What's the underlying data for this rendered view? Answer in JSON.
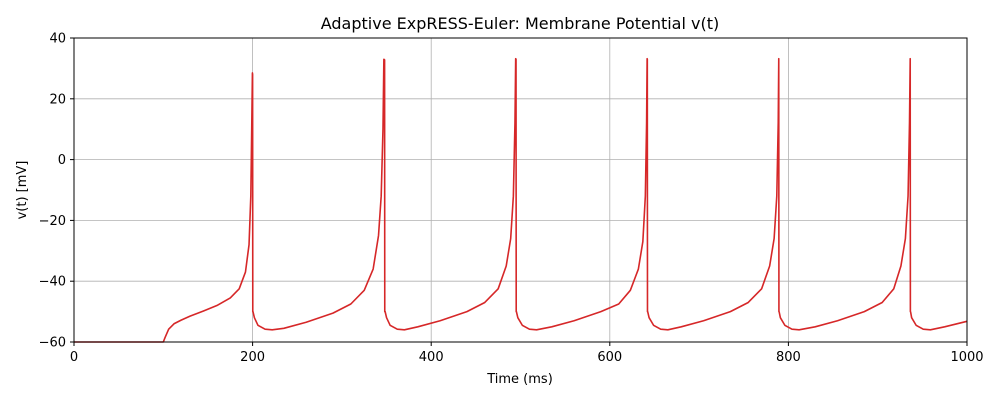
{
  "chart_data": {
    "type": "line",
    "title": "Adaptive ExpRESS-Euler: Membrane Potential v(t)",
    "xlabel": "Time (ms)",
    "ylabel": "v(t) [mV]",
    "xlim": [
      0,
      1000
    ],
    "ylim": [
      -60,
      40
    ],
    "xticks": [
      0,
      200,
      400,
      600,
      800,
      1000
    ],
    "yticks": [
      -60,
      -40,
      -20,
      0,
      20,
      40
    ],
    "ytick_labels": [
      "−60",
      "−40",
      "−20",
      "0",
      "20",
      "40"
    ],
    "grid": true,
    "legend": "none",
    "series": [
      {
        "color": "#d62728",
        "x": [
          0,
          100,
          102,
          106,
          112,
          120,
          130,
          145,
          160,
          175,
          185,
          192,
          196,
          198,
          199,
          199.8,
          200,
          200.2,
          200.4,
          202,
          206,
          214,
          222,
          235,
          260,
          290,
          310,
          325,
          335,
          341,
          344,
          346,
          347,
          347.8,
          348,
          348.2,
          348.4,
          350,
          354,
          362,
          370,
          385,
          410,
          440,
          460,
          475,
          484,
          489,
          492,
          493.8,
          494.6,
          495,
          495.2,
          495.4,
          497,
          502,
          510,
          518,
          535,
          560,
          590,
          610,
          623,
          632,
          637,
          639.8,
          641.2,
          641.8,
          642,
          642.2,
          642.4,
          644,
          649,
          657,
          665,
          680,
          705,
          735,
          755,
          770,
          779,
          784,
          787,
          788.6,
          789.2,
          789.4,
          789.6,
          791,
          796,
          804,
          812,
          830,
          855,
          885,
          905,
          918,
          926,
          931,
          934,
          935.6,
          936.4,
          936.6,
          936.8,
          938,
          943,
          951,
          959,
          975,
          1000
        ],
        "y": [
          -60,
          -60,
          -58.5,
          -55.8,
          -54,
          -52.8,
          -51.5,
          -49.8,
          -48,
          -45.5,
          -42.5,
          -37,
          -28,
          -12,
          10,
          28.5,
          28,
          -50,
          -50,
          -52,
          -54.5,
          -55.8,
          -56,
          -55.5,
          -53.5,
          -50.5,
          -47.5,
          -43,
          -36,
          -25,
          -12,
          10,
          33,
          32.8,
          -50,
          -50,
          -50,
          -52,
          -54.5,
          -55.8,
          -56,
          -55,
          -53,
          -50,
          -47,
          -42.5,
          -35,
          -26,
          -12,
          12,
          33.2,
          33,
          -50,
          -50,
          -52,
          -54.5,
          -55.8,
          -56,
          -55,
          -53,
          -50,
          -47.5,
          -43,
          -36,
          -27,
          -12,
          12,
          33.2,
          33,
          -50,
          -50,
          -52,
          -54.5,
          -55.8,
          -56,
          -55,
          -53,
          -50,
          -47,
          -42.5,
          -35,
          -26,
          -12,
          12,
          33.2,
          -50,
          -50,
          -52,
          -54.5,
          -55.8,
          -56,
          -55,
          -53,
          -50,
          -47,
          -42.5,
          -35,
          -26,
          -12,
          12,
          33.2,
          -50,
          -50,
          -52,
          -54.5,
          -55.8,
          -56,
          -55,
          -53.2
        ]
      }
    ]
  }
}
